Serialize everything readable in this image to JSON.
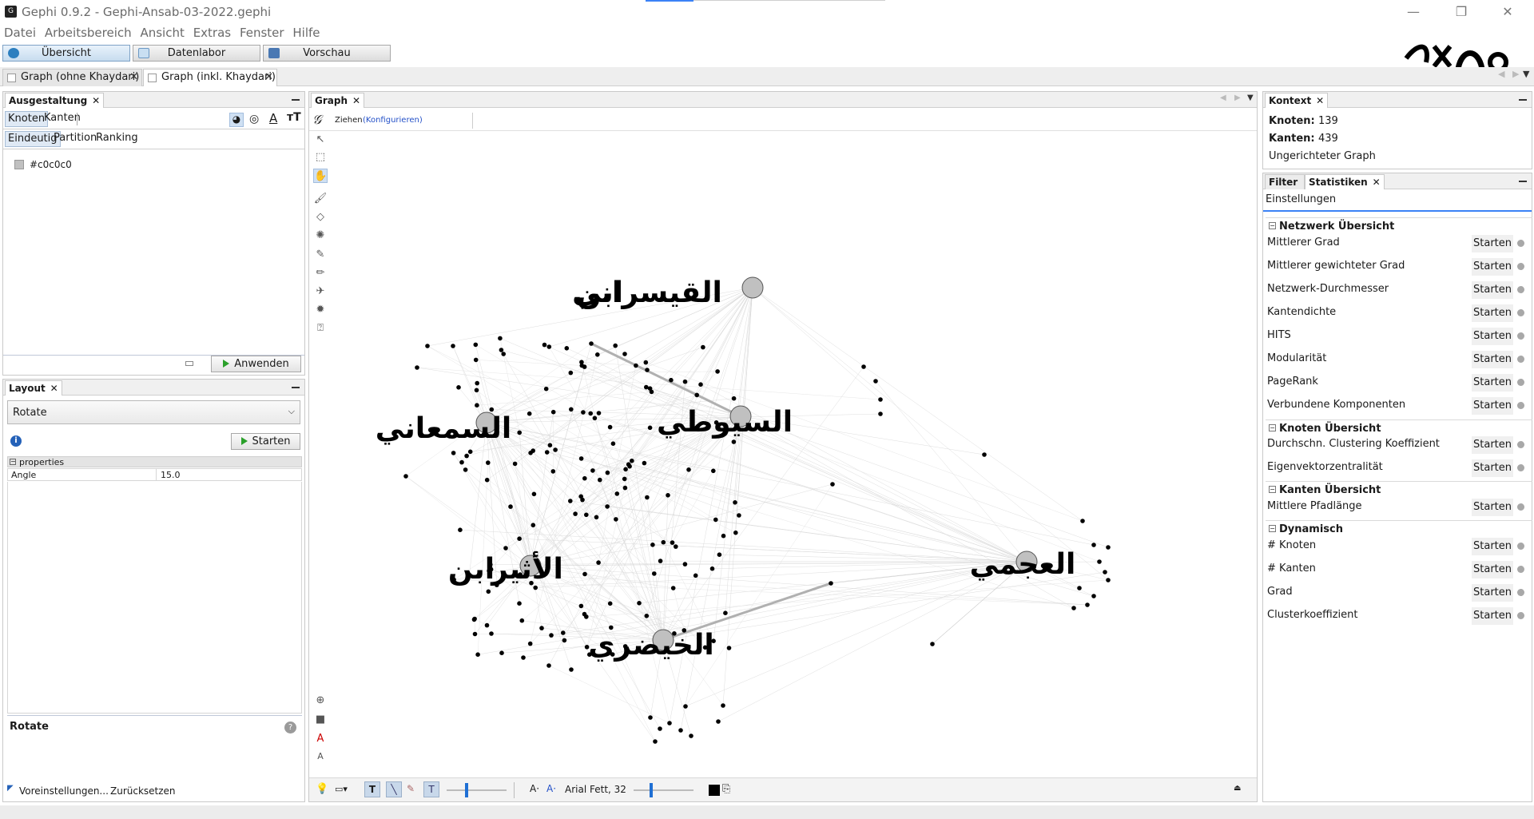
{
  "window": {
    "title": "Gephi 0.9.2 - Gephi-Ansab-03-2022.gephi",
    "minimize_glyph": "—",
    "restore_glyph": "❐",
    "close_glyph": "✕"
  },
  "menu": [
    "Datei",
    "Arbeitsbereich",
    "Ansicht",
    "Extras",
    "Fenster",
    "Hilfe"
  ],
  "modes": {
    "overview": "Übersicht",
    "datalab": "Datenlabor",
    "preview": "Vorschau"
  },
  "doc_tabs": [
    {
      "label": "Graph (ohne Khaydari)",
      "active": false
    },
    {
      "label": "Graph (inkl. Khaydari)",
      "active": true
    }
  ],
  "appearance": {
    "title": "Ausgestaltung",
    "tabs": [
      "Knoten",
      "Kanten"
    ],
    "subtabs": [
      "Eindeutig",
      "Partition",
      "Ranking"
    ],
    "color_value": "#c0c0c0",
    "apply_label": "Anwenden"
  },
  "layout": {
    "title": "Layout",
    "selected": "Rotate",
    "start_label": "Starten",
    "properties_header": "properties",
    "property_name": "Angle",
    "property_value": "15.0",
    "description_title": "Rotate",
    "presets_label": "Voreinstellungen...",
    "reset_label": "Zurücksetzen"
  },
  "graph": {
    "tab_title": "Graph",
    "drag_label": "Ziehen",
    "configure_label": "(Konfigurieren)",
    "font_label": "Arial Fett, 32",
    "node_color": "#000000",
    "hub_color": "#c0c0c0",
    "labels": {
      "l1": "القيسراني",
      "l1b": "ابن",
      "l2": "السمعاني",
      "l3": "السيوطي",
      "l4": "الأثير",
      "l4b": "ابن",
      "l5": "الخيضري",
      "l6": "العجمي"
    }
  },
  "context": {
    "title": "Kontext",
    "nodes_label": "Knoten:",
    "nodes_value": "139",
    "edges_label": "Kanten:",
    "edges_value": "439",
    "graph_type": "Ungerichteter Graph"
  },
  "statistics": {
    "filter_tab": "Filter",
    "stats_tab": "Statistiken",
    "settings_label": "Einstellungen",
    "start_label": "Starten",
    "sections": [
      {
        "title": "Netzwerk Übersicht",
        "items": [
          "Mittlerer Grad",
          "Mittlerer gewichteter Grad",
          "Netzwerk-Durchmesser",
          "Kantendichte",
          "HITS",
          "Modularität",
          "PageRank",
          "Verbundene Komponenten"
        ]
      },
      {
        "title": "Knoten Übersicht",
        "items": [
          "Durchschn. Clustering Koeffizient",
          "Eigenvektorzentralität"
        ]
      },
      {
        "title": "Kanten Übersicht",
        "items": [
          "Mittlere Pfadlänge"
        ]
      },
      {
        "title": "Dynamisch",
        "items": [
          "# Knoten",
          "# Kanten",
          "Grad",
          "Clusterkoeffizient"
        ]
      }
    ]
  }
}
